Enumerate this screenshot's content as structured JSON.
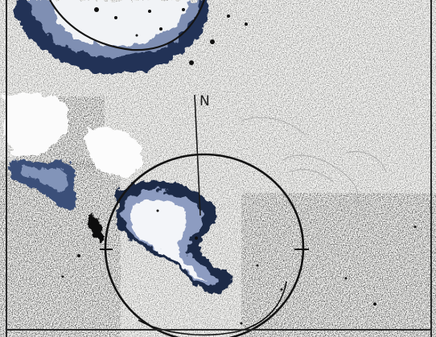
{
  "compass": {
    "north_label": "N"
  },
  "colors": {
    "paper": "#f4f4f2",
    "ink": "#141414",
    "stain_dark": "#1b2a44",
    "stain_mid": "#5d6f96",
    "stain_light": "#c9d3e6"
  }
}
